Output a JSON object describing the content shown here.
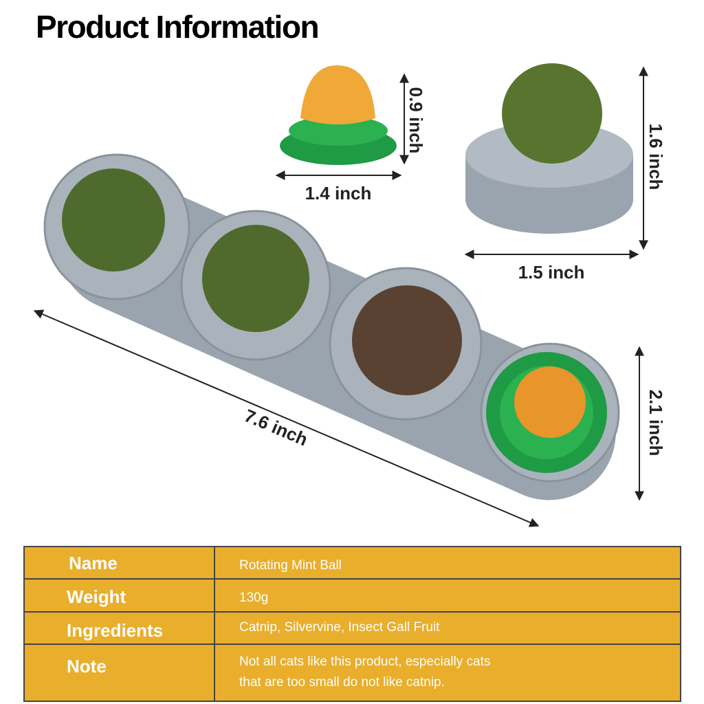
{
  "header": {
    "title": "Product Information"
  },
  "dimensions": {
    "small_height": "0.9 inch",
    "small_width": "1.4 inch",
    "large_height": "1.6 inch",
    "large_width": "1.5 inch",
    "length": "7.6 inch",
    "width": "2.1 inch"
  },
  "table": {
    "rows": [
      [
        "Name",
        "Rotating Mint Ball"
      ],
      [
        "Weight",
        "130g"
      ],
      [
        "Ingredients",
        "Catnip, Silvervine, Insect Gall Fruit"
      ],
      [
        "Note",
        [
          "Not all cats like this product, especially cats",
          "that are too small do not like catnip."
        ]
      ]
    ]
  }
}
